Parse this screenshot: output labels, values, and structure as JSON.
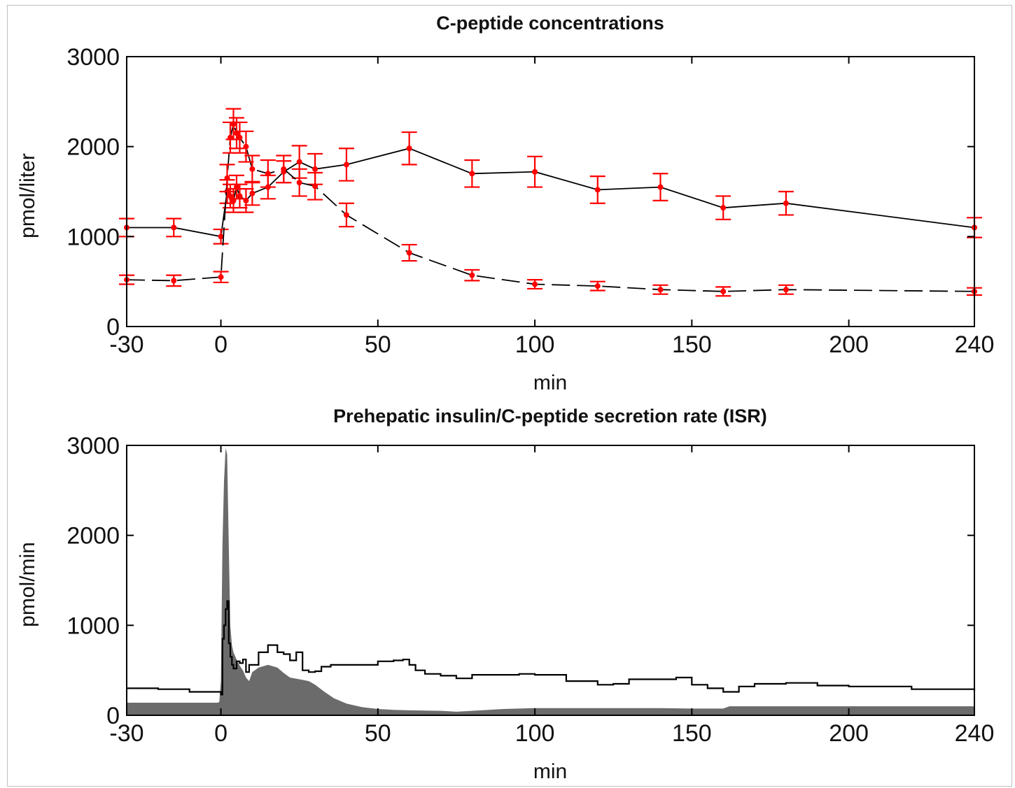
{
  "chart_data": [
    {
      "type": "line",
      "title": "C-peptide concentrations",
      "xlabel": "min",
      "ylabel": "pmol/liter",
      "xlim": [
        -30,
        240
      ],
      "ylim": [
        0,
        3000
      ],
      "xticks": [
        -30,
        0,
        50,
        100,
        150,
        200,
        240
      ],
      "yticks": [
        0,
        1000,
        2000,
        3000
      ],
      "x_tick_labels": [
        "-30",
        "0",
        "50",
        "100",
        "150",
        "200",
        "240"
      ],
      "y_tick_labels": [
        "0",
        "1000",
        "2000",
        "3000"
      ],
      "grid": false,
      "marker_color": "#ff0000",
      "line_color": "#000000",
      "series": [
        {
          "style": "solid",
          "x": [
            -30,
            -15,
            0,
            2,
            3,
            4,
            5,
            6,
            8,
            10,
            15,
            20,
            25,
            30,
            40,
            60,
            80,
            100,
            120,
            140,
            160,
            180,
            240
          ],
          "y": [
            1100,
            1100,
            1000,
            1500,
            1450,
            1400,
            1550,
            1450,
            1400,
            1480,
            1550,
            1720,
            1830,
            1750,
            1800,
            1980,
            1700,
            1720,
            1520,
            1550,
            1320,
            1370,
            1100
          ],
          "err": [
            100,
            100,
            80,
            130,
            130,
            130,
            130,
            130,
            130,
            130,
            130,
            120,
            180,
            170,
            180,
            180,
            150,
            170,
            150,
            150,
            130,
            130,
            110
          ]
        },
        {
          "style": "dashed",
          "x": [
            -30,
            -15,
            0,
            2,
            3,
            4,
            5,
            6,
            8,
            10,
            15,
            20,
            25,
            30,
            40,
            60,
            80,
            100,
            120,
            140,
            160,
            180,
            240
          ],
          "y": [
            520,
            510,
            550,
            1650,
            2100,
            2250,
            2150,
            2100,
            2000,
            1750,
            1700,
            1750,
            1600,
            1560,
            1240,
            820,
            570,
            470,
            450,
            410,
            390,
            410,
            390
          ],
          "err": [
            50,
            60,
            60,
            150,
            170,
            170,
            170,
            170,
            170,
            150,
            150,
            150,
            150,
            150,
            130,
            90,
            60,
            50,
            50,
            50,
            50,
            50,
            40
          ]
        }
      ]
    },
    {
      "type": "area",
      "title": "Prehepatic insulin/C-peptide secretion rate (ISR)",
      "xlabel": "min",
      "ylabel": "pmol/min",
      "xlim": [
        -30,
        240
      ],
      "ylim": [
        0,
        3000
      ],
      "xticks": [
        -30,
        0,
        50,
        100,
        150,
        200,
        240
      ],
      "yticks": [
        0,
        1000,
        2000,
        3000
      ],
      "x_tick_labels": [
        "-30",
        "0",
        "50",
        "100",
        "150",
        "200",
        "240"
      ],
      "y_tick_labels": [
        "0",
        "1000",
        "2000",
        "3000"
      ],
      "grid": false,
      "area_color": "#6b6b6b",
      "line_color": "#000000",
      "series": [
        {
          "style": "filled-area",
          "x": [
            -30,
            -1,
            -0.5,
            0,
            0.5,
            1,
            1.5,
            2,
            2.5,
            3,
            3.5,
            4,
            5,
            6,
            7,
            8,
            9,
            10,
            12,
            15,
            18,
            20,
            22,
            25,
            28,
            30,
            33,
            36,
            40,
            45,
            50,
            55,
            60,
            70,
            75,
            80,
            90,
            100,
            120,
            140,
            150,
            160,
            162,
            180,
            200,
            220,
            240
          ],
          "y": [
            140,
            140,
            150,
            380,
            1900,
            2600,
            2970,
            2900,
            1900,
            1000,
            780,
            700,
            620,
            550,
            500,
            420,
            380,
            480,
            530,
            560,
            530,
            470,
            420,
            400,
            380,
            340,
            260,
            190,
            130,
            90,
            70,
            60,
            55,
            50,
            40,
            50,
            70,
            80,
            80,
            80,
            75,
            75,
            100,
            100,
            100,
            100,
            100
          ]
        },
        {
          "style": "solid",
          "x": [
            -30,
            -20,
            -10,
            0,
            0.5,
            1,
            1.5,
            2,
            2.5,
            3,
            3.5,
            4,
            5,
            6,
            7,
            8,
            9,
            10,
            12,
            15,
            18,
            20,
            22,
            24,
            26,
            28,
            30,
            32,
            35,
            40,
            50,
            55,
            58,
            60,
            62,
            65,
            70,
            75,
            80,
            90,
            95,
            100,
            110,
            120,
            125,
            130,
            140,
            145,
            150,
            155,
            160,
            165,
            170,
            180,
            190,
            200,
            220,
            240
          ],
          "y": [
            300,
            290,
            260,
            230,
            850,
            1000,
            1180,
            1270,
            800,
            650,
            560,
            520,
            600,
            580,
            620,
            480,
            560,
            560,
            700,
            780,
            700,
            680,
            610,
            700,
            500,
            480,
            490,
            540,
            560,
            560,
            600,
            610,
            620,
            560,
            500,
            460,
            440,
            410,
            450,
            450,
            460,
            450,
            380,
            340,
            350,
            400,
            400,
            420,
            340,
            300,
            260,
            320,
            350,
            360,
            330,
            320,
            290,
            270
          ]
        }
      ]
    }
  ]
}
